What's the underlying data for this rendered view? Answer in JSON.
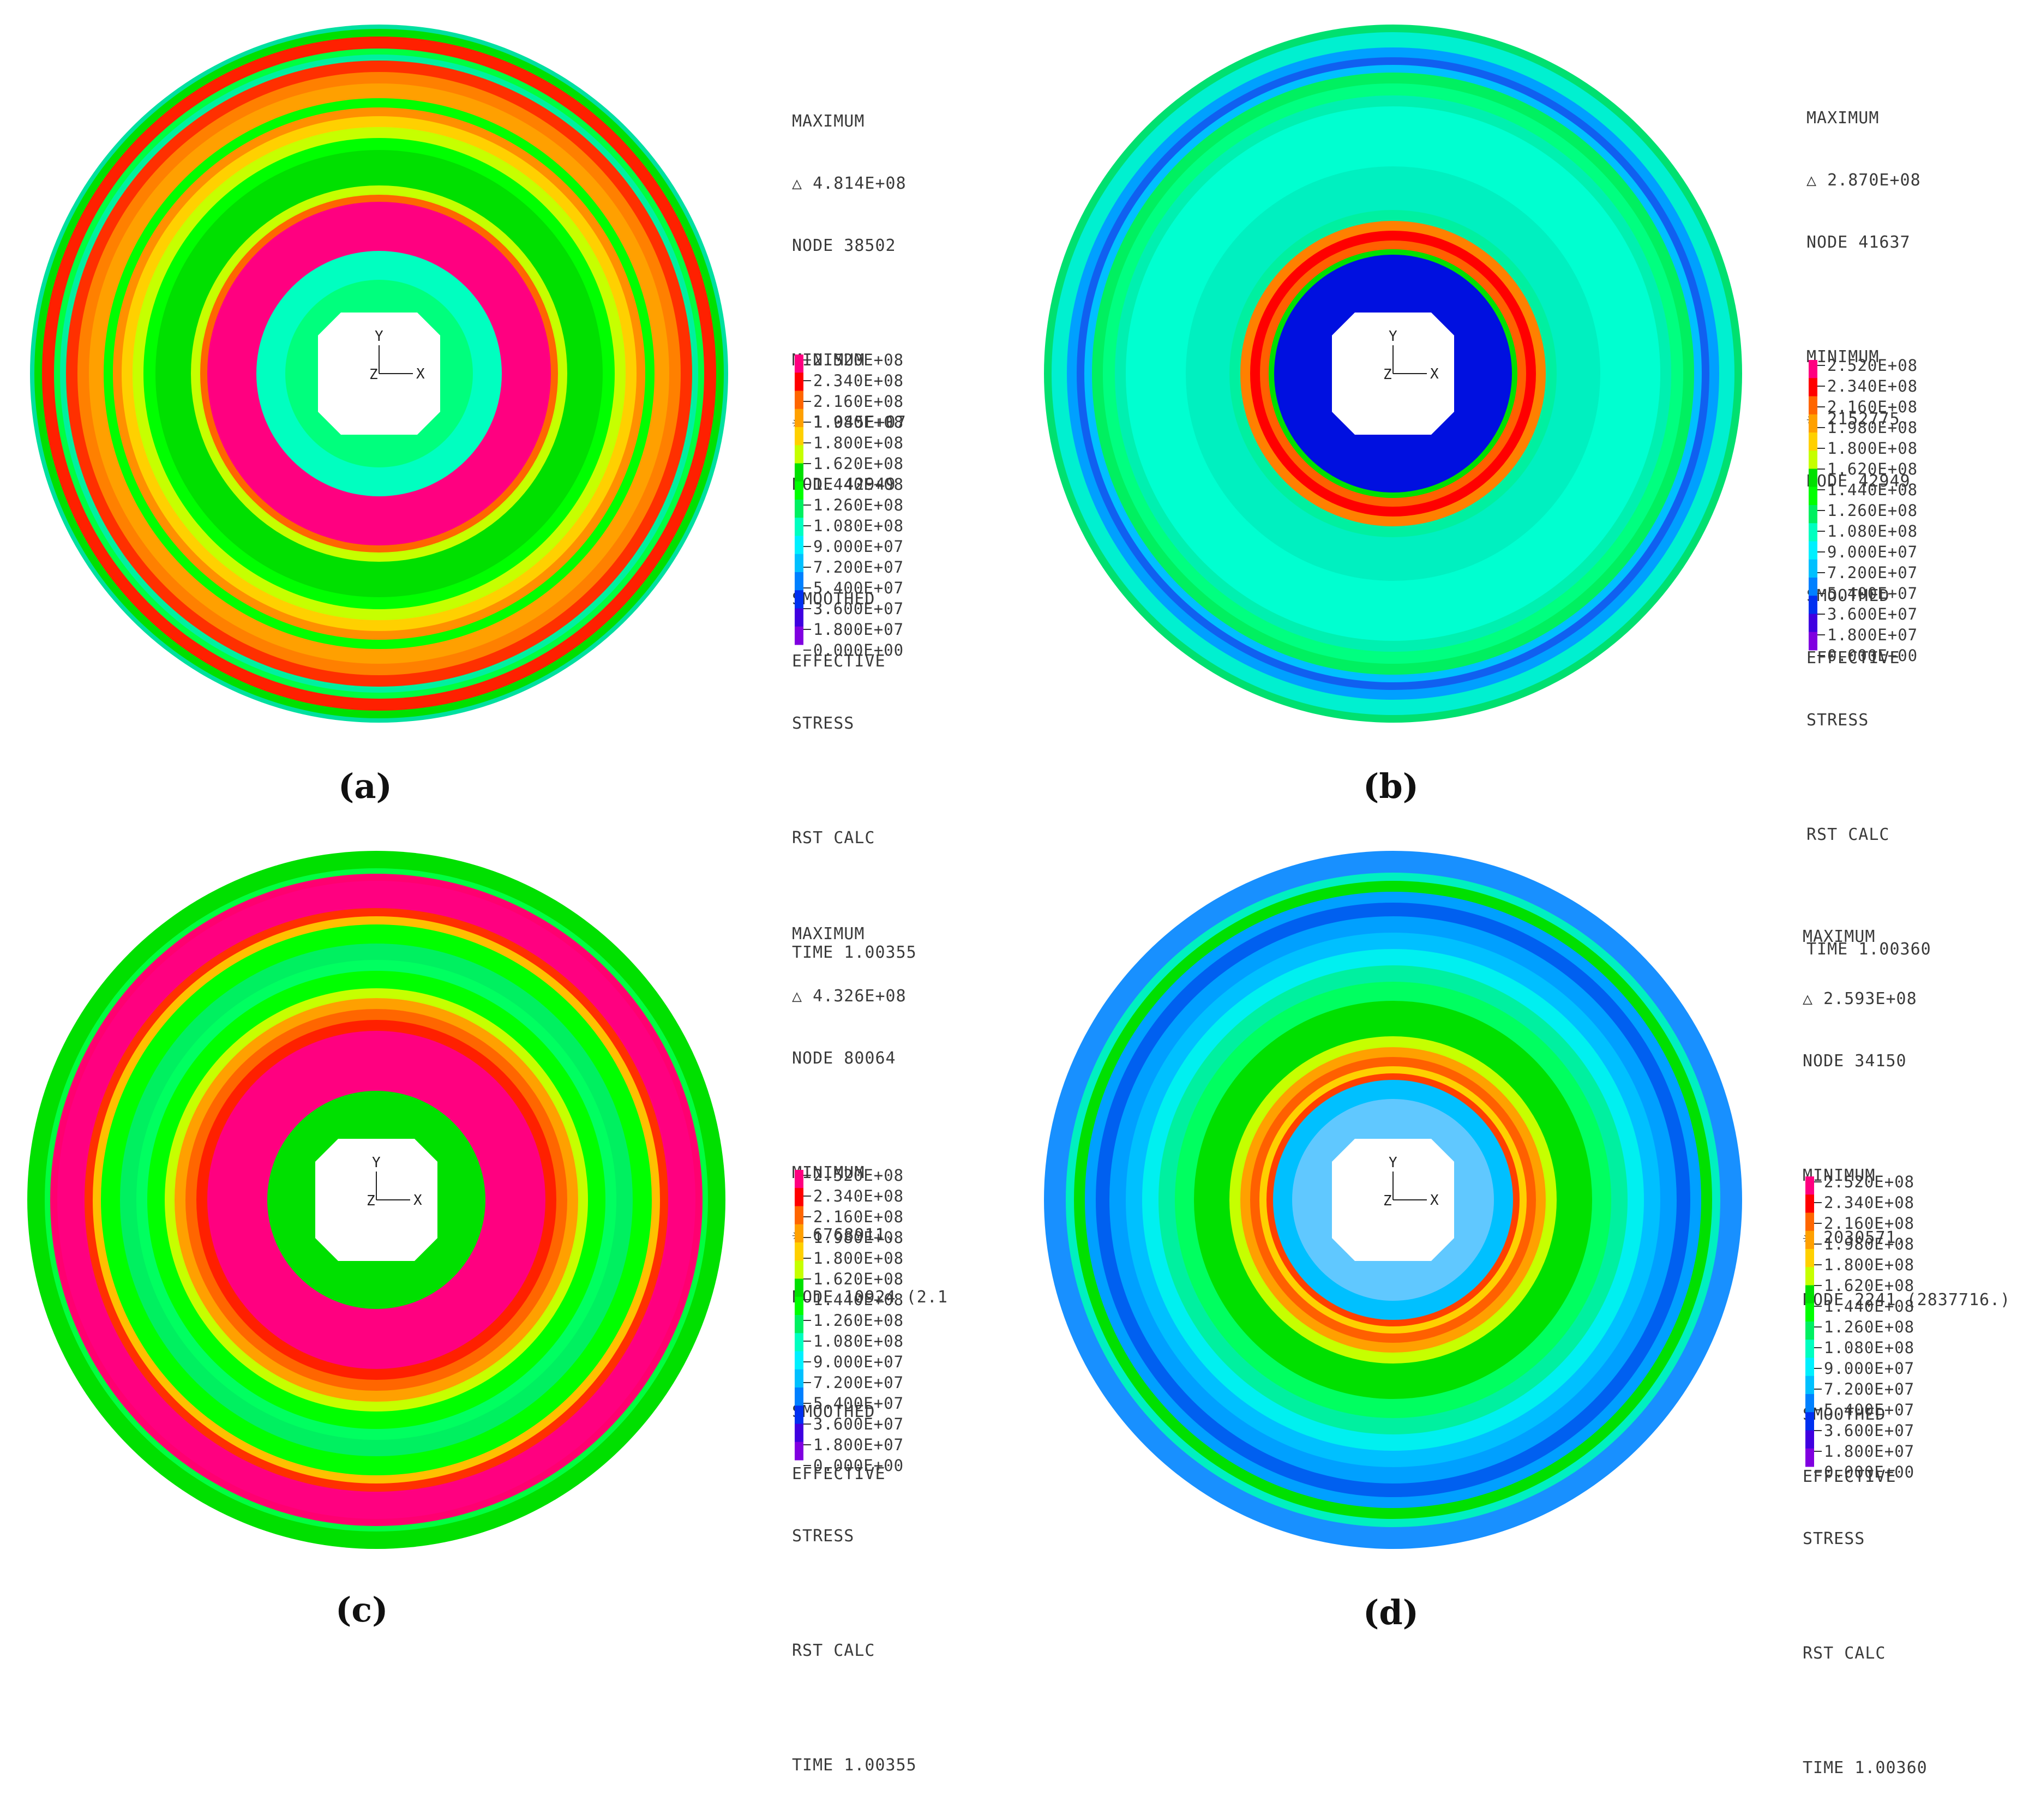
{
  "colors": [
    "#ff0080",
    "#ff0000",
    "#ff6600",
    "#ffa000",
    "#ffd000",
    "#c6ff00",
    "#00e000",
    "#00ff00",
    "#00f060",
    "#00ffc0",
    "#00f0ff",
    "#00c0ff",
    "#0080ff",
    "#0030f0",
    "#4000e0",
    "#8000e0"
  ],
  "legend_values": [
    "2.520E+08",
    "2.340E+08",
    "2.160E+08",
    "1.980E+08",
    "1.800E+08",
    "1.620E+08",
    "1.440E+08",
    "1.260E+08",
    "1.080E+08",
    "9.000E+07",
    "7.200E+07",
    "5.400E+07",
    "3.600E+07",
    "1.800E+07",
    "0.000E+00"
  ],
  "axis": {
    "x": "X",
    "y": "Y",
    "z": "Z"
  },
  "panels": [
    {
      "id": "a",
      "caption": "(a)",
      "max_label": "MAXIMUM",
      "max_value": "4.814E+08",
      "max_node": "NODE 38502",
      "min_label": "MINIMUM",
      "min_value": "1.045E+07",
      "min_node": "NODE 42949",
      "result_1": "SMOOTHED",
      "result_2": "EFFECTIVE",
      "result_3": "STRESS",
      "calc": "RST CALC",
      "time": "TIME 1.00355"
    },
    {
      "id": "b",
      "caption": "(b)",
      "max_label": "MAXIMUM",
      "max_value": "2.870E+08",
      "max_node": "NODE 41637",
      "min_label": "MINIMUM",
      "min_value": "2152775.",
      "min_node": "NODE 42949",
      "result_1": "SMOOTHED",
      "result_2": "EFFECTIVE",
      "result_3": "STRESS",
      "calc": "RST CALC",
      "time": "TIME 1.00360"
    },
    {
      "id": "c",
      "caption": "(c)",
      "max_label": "MAXIMUM",
      "max_value": "4.326E+08",
      "max_node": "NODE 80064",
      "min_label": "MINIMUM",
      "min_value": "6768911.",
      "min_node": "NODE 10924 (2.1",
      "result_1": "SMOOTHED",
      "result_2": "EFFECTIVE",
      "result_3": "STRESS",
      "calc": "RST CALC",
      "time": "TIME 1.00355"
    },
    {
      "id": "d",
      "caption": "(d)",
      "max_label": "MAXIMUM",
      "max_value": "2.593E+08",
      "max_node": "NODE 34150",
      "min_label": "MINIMUM",
      "min_value": "2030571.",
      "min_node": "NODE 2241 (2837716.)",
      "result_1": "SMOOTHED",
      "result_2": "EFFECTIVE",
      "result_3": "STRESS",
      "calc": "RST CALC",
      "time": "TIME 1.00360"
    }
  ]
}
